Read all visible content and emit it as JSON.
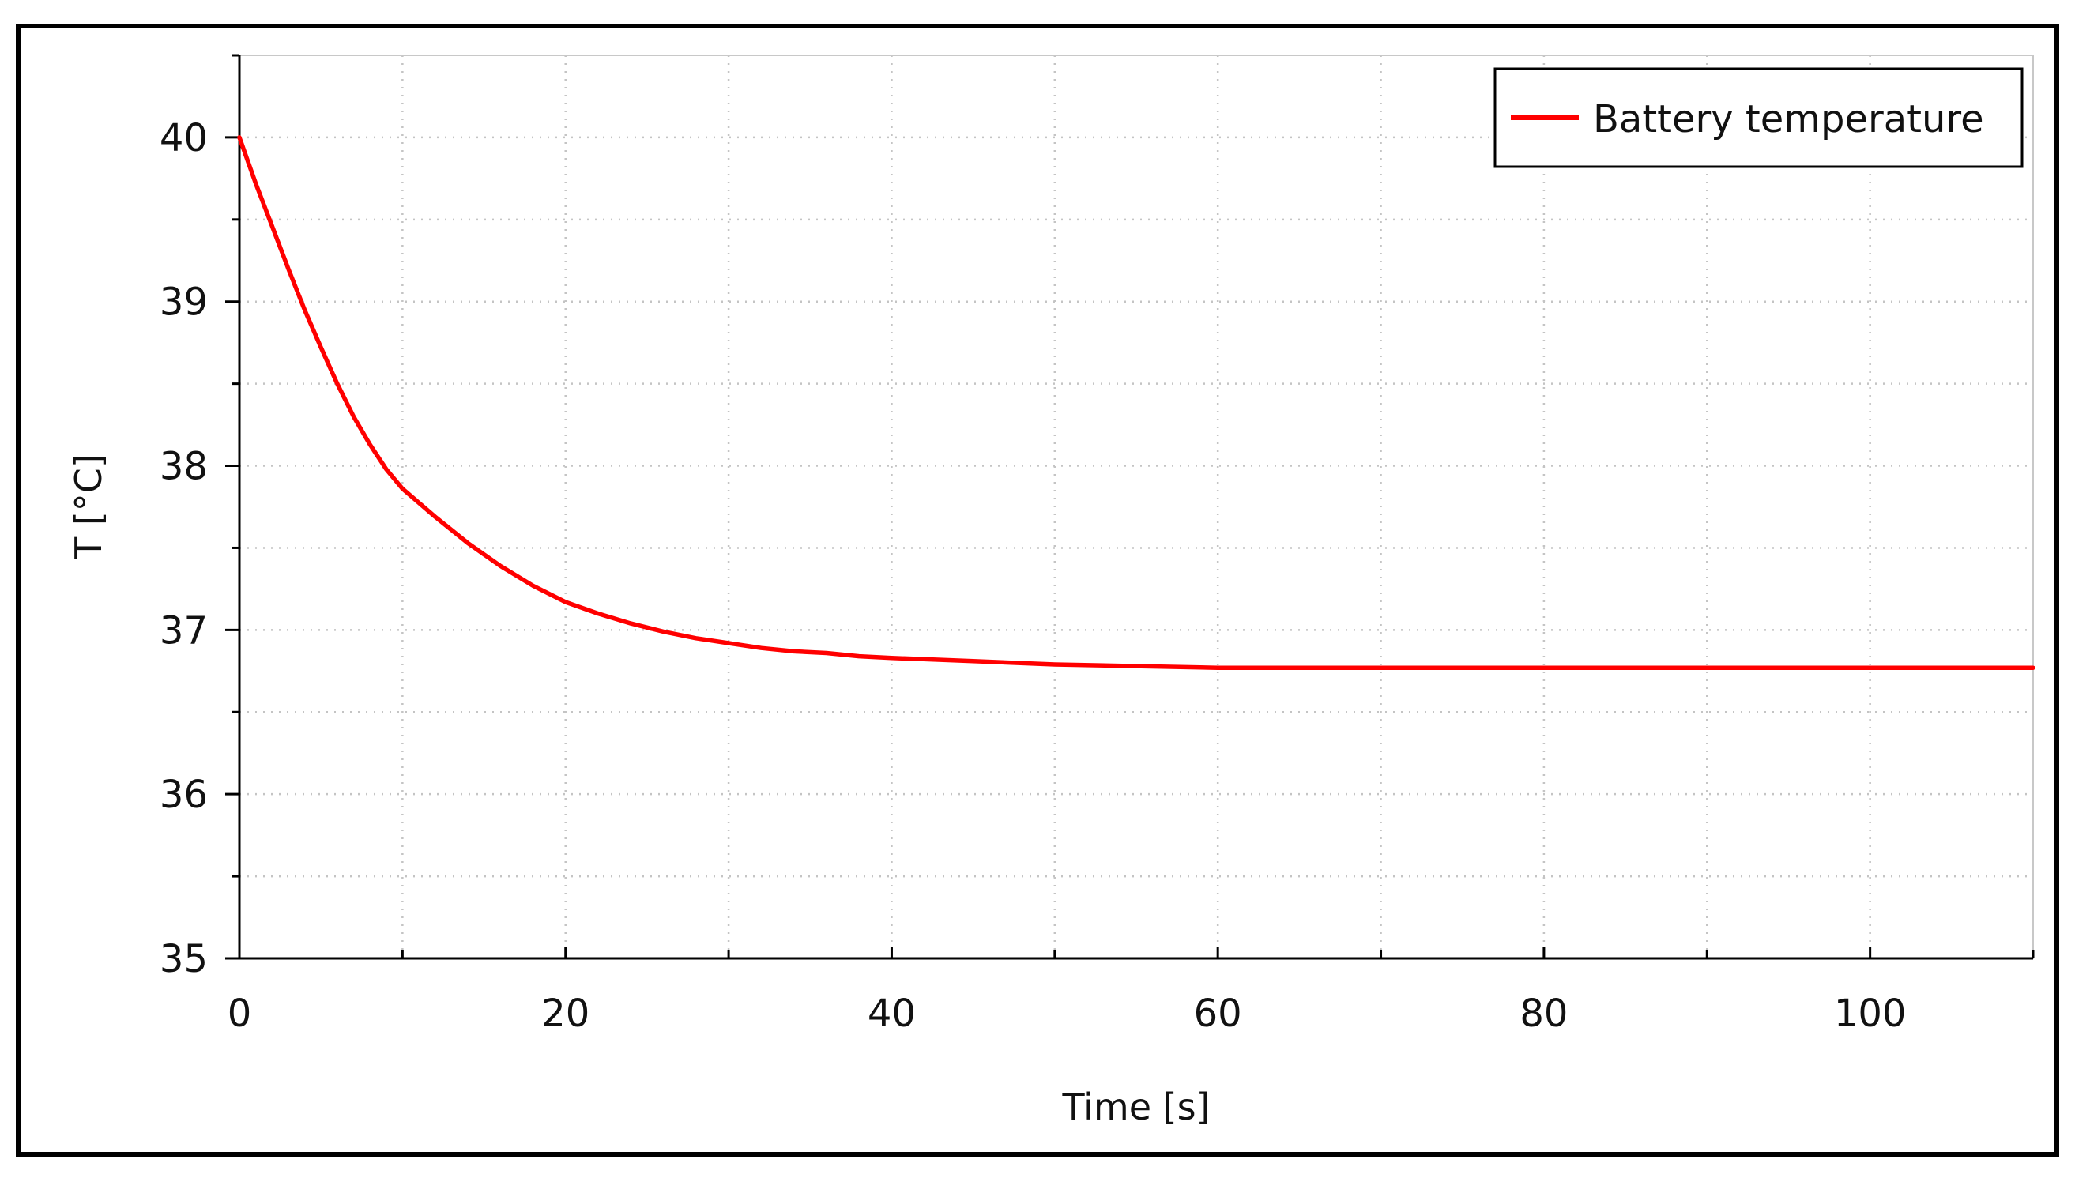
{
  "chart_data": {
    "type": "line",
    "xlabel": "Time [s]",
    "ylabel": "T [°C]",
    "xlim": [
      0,
      110
    ],
    "ylim": [
      35,
      40.5
    ],
    "xticks": [
      0,
      20,
      40,
      60,
      80,
      100
    ],
    "xticks_minor": [
      10,
      30,
      50,
      70,
      90,
      110
    ],
    "yticks": [
      35,
      36,
      37,
      38,
      39,
      40
    ],
    "yticks_minor": [
      35.5,
      36.5,
      37.5,
      38.5,
      39.5,
      40.5
    ],
    "grid": true,
    "legend_position": "top-right",
    "series": [
      {
        "name": "Battery temperature",
        "color": "#ff0000",
        "x": [
          0,
          1,
          2,
          3,
          4,
          5,
          6,
          7,
          8,
          9,
          10,
          12,
          14,
          16,
          18,
          20,
          22,
          24,
          26,
          28,
          30,
          32,
          34,
          36,
          38,
          40,
          45,
          50,
          55,
          60,
          70,
          80,
          90,
          100,
          110
        ],
        "y": [
          40.0,
          39.72,
          39.46,
          39.2,
          38.95,
          38.72,
          38.5,
          38.3,
          38.13,
          37.98,
          37.86,
          37.69,
          37.53,
          37.39,
          37.27,
          37.17,
          37.1,
          37.04,
          36.99,
          36.95,
          36.92,
          36.89,
          36.87,
          36.86,
          36.84,
          36.83,
          36.81,
          36.79,
          36.78,
          36.77,
          36.77,
          36.77,
          36.77,
          36.77,
          36.77
        ]
      }
    ]
  }
}
